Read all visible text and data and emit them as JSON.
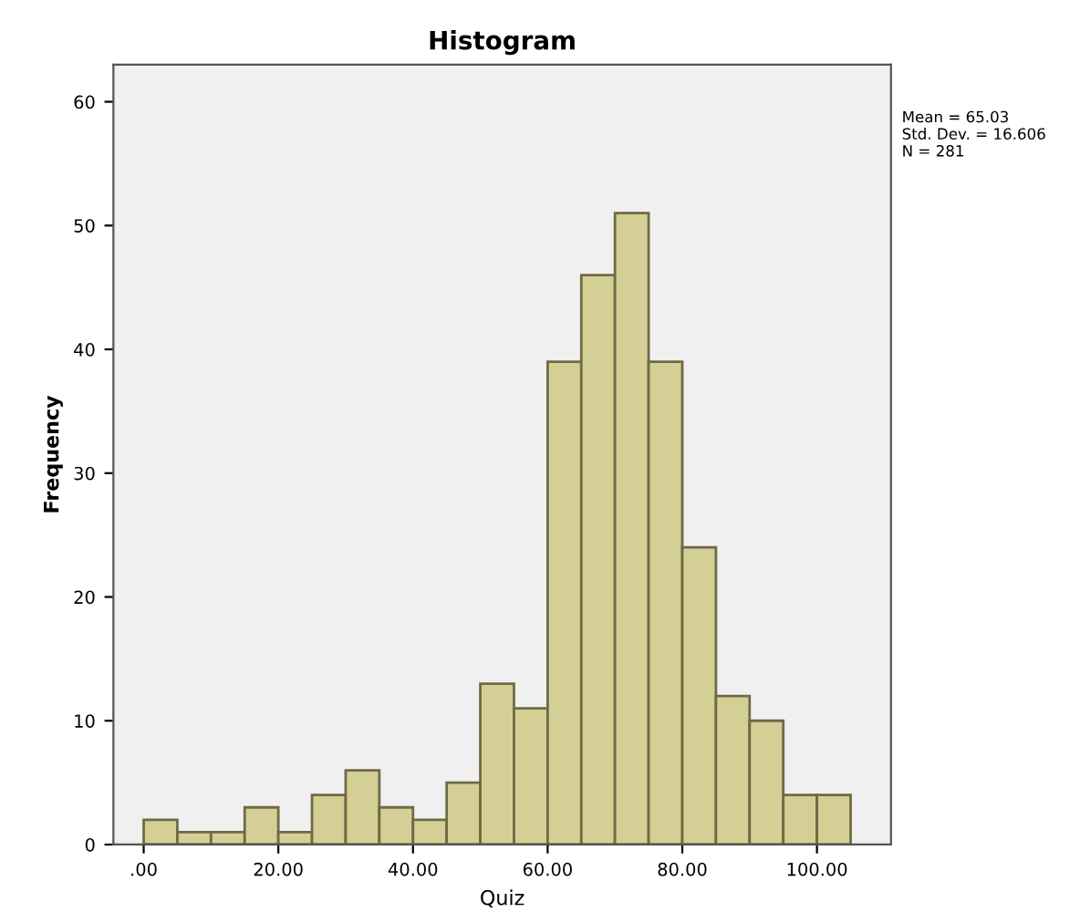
{
  "chart_data": {
    "type": "histogram",
    "title": "Histogram",
    "xlabel": "Quiz",
    "ylabel": "Frequency",
    "bins": [
      0,
      5,
      10,
      15,
      20,
      25,
      30,
      35,
      40,
      45,
      50,
      55,
      60,
      65,
      70,
      75,
      80,
      85,
      90,
      95,
      100,
      105
    ],
    "values": [
      2,
      1,
      1,
      3,
      1,
      4,
      6,
      3,
      2,
      5,
      13,
      11,
      39,
      46,
      51,
      39,
      24,
      12,
      10,
      4,
      4
    ],
    "color": "#d4cf94",
    "xlim": [
      -4.5,
      111
    ],
    "ylim": [
      0,
      63
    ],
    "xticks": [
      {
        "value": 0,
        "label": ".00"
      },
      {
        "value": 20,
        "label": "20.00"
      },
      {
        "value": 40,
        "label": "40.00"
      },
      {
        "value": 60,
        "label": "60.00"
      },
      {
        "value": 80,
        "label": "80.00"
      },
      {
        "value": 100,
        "label": "100.00"
      }
    ],
    "yticks": [
      0,
      10,
      20,
      30,
      40,
      50,
      60
    ],
    "grid": false,
    "annotations": [
      "Mean = 65.03\nStd. Dev. = 16.606\nN = 281"
    ]
  }
}
